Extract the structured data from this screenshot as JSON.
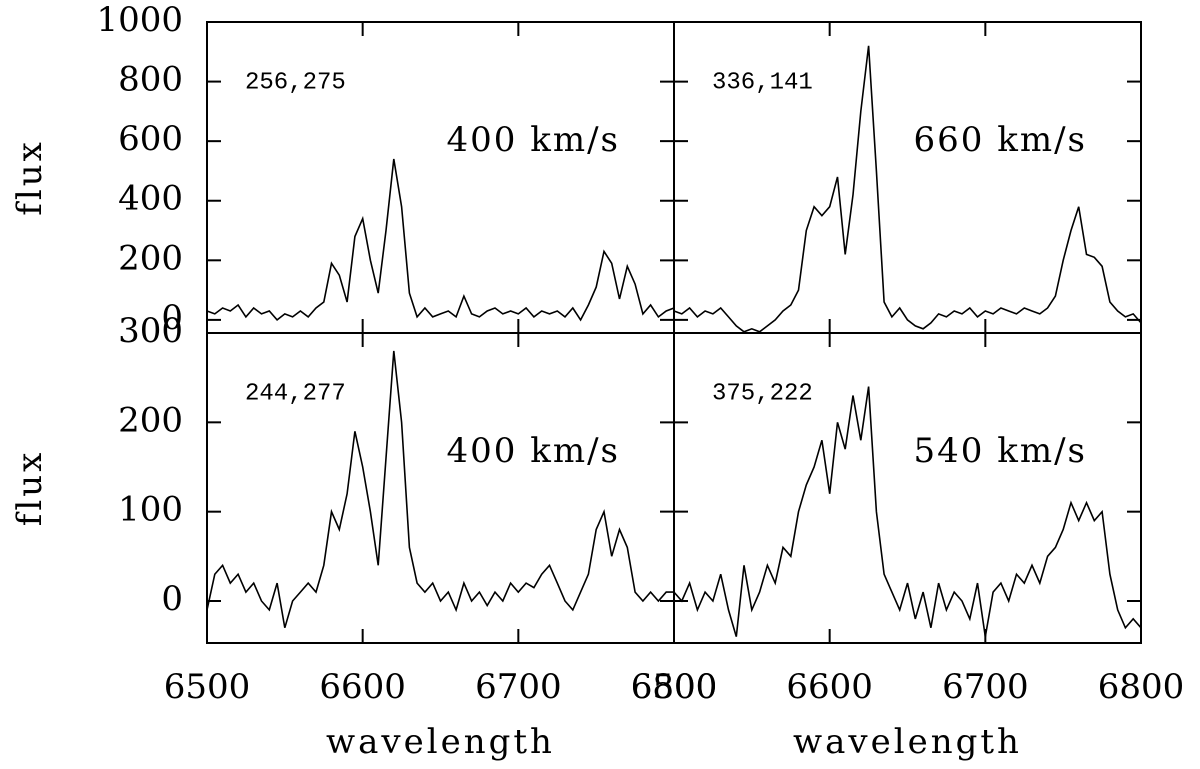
{
  "chart_data": [
    {
      "type": "line",
      "color": "#000000",
      "annotations": [
        "256,275",
        "400 km/s"
      ],
      "ylabel": "flux",
      "xlim": [
        6500,
        6800
      ],
      "ylim": [
        -44,
        1000
      ],
      "yticks": [
        0,
        200,
        400,
        600,
        800,
        1000
      ],
      "x": [
        6500,
        6505,
        6510,
        6515,
        6520,
        6525,
        6530,
        6535,
        6540,
        6545,
        6550,
        6555,
        6560,
        6565,
        6570,
        6575,
        6580,
        6585,
        6590,
        6595,
        6600,
        6605,
        6610,
        6615,
        6620,
        6625,
        6630,
        6635,
        6640,
        6645,
        6650,
        6655,
        6660,
        6665,
        6670,
        6675,
        6680,
        6685,
        6690,
        6695,
        6700,
        6705,
        6710,
        6715,
        6720,
        6725,
        6730,
        6735,
        6740,
        6745,
        6750,
        6755,
        6760,
        6765,
        6770,
        6775,
        6780,
        6785,
        6790,
        6795,
        6800
      ],
      "values": [
        30,
        20,
        40,
        30,
        50,
        10,
        40,
        20,
        30,
        0,
        20,
        10,
        30,
        10,
        40,
        60,
        190,
        150,
        60,
        280,
        340,
        200,
        90,
        300,
        540,
        380,
        90,
        10,
        40,
        10,
        20,
        30,
        10,
        80,
        20,
        10,
        30,
        40,
        20,
        30,
        20,
        40,
        10,
        30,
        20,
        30,
        10,
        40,
        0,
        50,
        110,
        230,
        190,
        70,
        180,
        120,
        20,
        50,
        10,
        30,
        40
      ]
    },
    {
      "type": "line",
      "color": "#000000",
      "annotations": [
        "336,141",
        "660 km/s"
      ],
      "xlim": [
        6500,
        6800
      ],
      "ylim": [
        -44,
        1000
      ],
      "x": [
        6500,
        6505,
        6510,
        6515,
        6520,
        6525,
        6530,
        6535,
        6540,
        6545,
        6550,
        6555,
        6560,
        6565,
        6570,
        6575,
        6580,
        6585,
        6590,
        6595,
        6600,
        6605,
        6610,
        6615,
        6620,
        6625,
        6630,
        6635,
        6640,
        6645,
        6650,
        6655,
        6660,
        6665,
        6670,
        6675,
        6680,
        6685,
        6690,
        6695,
        6700,
        6705,
        6710,
        6715,
        6720,
        6725,
        6730,
        6735,
        6740,
        6745,
        6750,
        6755,
        6760,
        6765,
        6770,
        6775,
        6780,
        6785,
        6790,
        6795,
        6800
      ],
      "values": [
        30,
        20,
        40,
        10,
        30,
        20,
        40,
        10,
        -20,
        -40,
        -30,
        -40,
        -20,
        0,
        30,
        50,
        100,
        300,
        380,
        350,
        380,
        480,
        220,
        420,
        700,
        920,
        500,
        60,
        10,
        40,
        0,
        -20,
        -30,
        -10,
        20,
        10,
        30,
        20,
        40,
        10,
        30,
        20,
        40,
        30,
        20,
        40,
        30,
        20,
        40,
        80,
        200,
        300,
        380,
        220,
        210,
        180,
        60,
        30,
        10,
        20,
        -10
      ]
    },
    {
      "type": "line",
      "color": "#000000",
      "annotations": [
        "244,277",
        "400 km/s"
      ],
      "ylabel": "flux",
      "xlabel": "wavelength",
      "xlim": [
        6500,
        6800
      ],
      "ylim": [
        -47,
        300
      ],
      "yticks": [
        0,
        100,
        200,
        300
      ],
      "xticks": [
        6500,
        6600,
        6700,
        6800
      ],
      "x": [
        6500,
        6505,
        6510,
        6515,
        6520,
        6525,
        6530,
        6535,
        6540,
        6545,
        6550,
        6555,
        6560,
        6565,
        6570,
        6575,
        6580,
        6585,
        6590,
        6595,
        6600,
        6605,
        6610,
        6615,
        6620,
        6625,
        6630,
        6635,
        6640,
        6645,
        6650,
        6655,
        6660,
        6665,
        6670,
        6675,
        6680,
        6685,
        6690,
        6695,
        6700,
        6705,
        6710,
        6715,
        6720,
        6725,
        6730,
        6735,
        6740,
        6745,
        6750,
        6755,
        6760,
        6765,
        6770,
        6775,
        6780,
        6785,
        6790,
        6795,
        6800
      ],
      "values": [
        -10,
        30,
        40,
        20,
        30,
        10,
        20,
        0,
        -10,
        20,
        -30,
        0,
        10,
        20,
        10,
        40,
        100,
        80,
        120,
        190,
        150,
        100,
        40,
        160,
        280,
        200,
        60,
        20,
        10,
        20,
        0,
        10,
        -10,
        20,
        0,
        10,
        -5,
        10,
        0,
        20,
        10,
        20,
        15,
        30,
        40,
        20,
        0,
        -10,
        10,
        30,
        80,
        100,
        50,
        80,
        60,
        10,
        0,
        10,
        0,
        10,
        10
      ]
    },
    {
      "type": "line",
      "color": "#000000",
      "annotations": [
        "375,222",
        "540 km/s"
      ],
      "xlabel": "wavelength",
      "xlim": [
        6500,
        6800
      ],
      "ylim": [
        -47,
        300
      ],
      "xticks": [
        6500,
        6600,
        6700,
        6800
      ],
      "x": [
        6500,
        6505,
        6510,
        6515,
        6520,
        6525,
        6530,
        6535,
        6540,
        6545,
        6550,
        6555,
        6560,
        6565,
        6570,
        6575,
        6580,
        6585,
        6590,
        6595,
        6600,
        6605,
        6610,
        6615,
        6620,
        6625,
        6630,
        6635,
        6640,
        6645,
        6650,
        6655,
        6660,
        6665,
        6670,
        6675,
        6680,
        6685,
        6690,
        6695,
        6700,
        6705,
        6710,
        6715,
        6720,
        6725,
        6730,
        6735,
        6740,
        6745,
        6750,
        6755,
        6760,
        6765,
        6770,
        6775,
        6780,
        6785,
        6790,
        6795,
        6800
      ],
      "values": [
        10,
        0,
        20,
        -10,
        10,
        0,
        30,
        -10,
        -40,
        40,
        -10,
        10,
        40,
        20,
        60,
        50,
        100,
        130,
        150,
        180,
        120,
        200,
        170,
        230,
        180,
        240,
        100,
        30,
        10,
        -10,
        20,
        -20,
        10,
        -30,
        20,
        -10,
        10,
        0,
        -20,
        20,
        -40,
        10,
        20,
        0,
        30,
        20,
        40,
        20,
        50,
        60,
        80,
        110,
        90,
        110,
        90,
        100,
        30,
        -10,
        -30,
        -20,
        -30
      ]
    }
  ]
}
